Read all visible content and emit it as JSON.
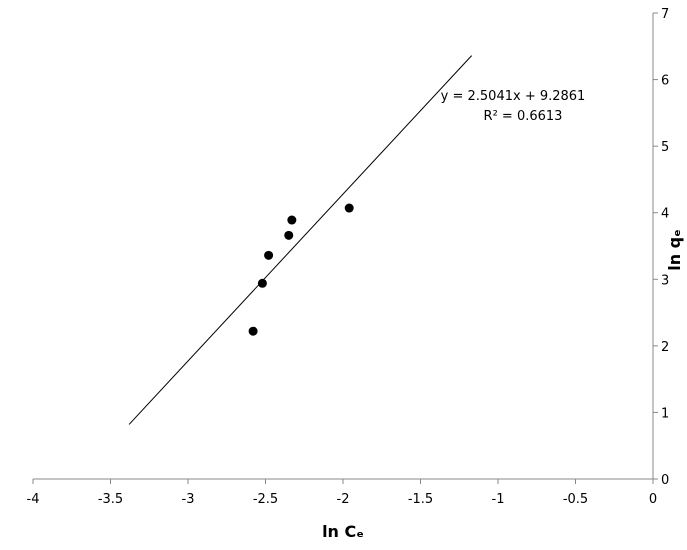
{
  "chart_data": {
    "type": "scatter",
    "x_label": "ln Cₑ",
    "y_label": "ln qₑ",
    "series": [
      {
        "name": null,
        "color": "#000000",
        "x": [
          -2.58,
          -2.52,
          -2.48,
          -2.35,
          -2.33,
          -1.96
        ],
        "values": [
          2.22,
          2.94,
          3.36,
          3.66,
          3.89,
          4.07
        ]
      }
    ],
    "trendline": {
      "x": [
        -3.38,
        -1.17
      ],
      "values": [
        0.82,
        6.36
      ],
      "color": "#000000",
      "equation": "y = 2.5041x + 9.2861",
      "r_squared": "R² = 0.6613"
    },
    "xlim": [
      -4,
      0
    ],
    "xticks": [
      -4,
      -3.5,
      -3,
      -2.5,
      -2,
      -1.5,
      -1,
      -0.5,
      0
    ],
    "ylim": [
      0,
      7
    ],
    "yticks": [
      0,
      1,
      2,
      3,
      4,
      5,
      6,
      7
    ],
    "grid": false
  }
}
